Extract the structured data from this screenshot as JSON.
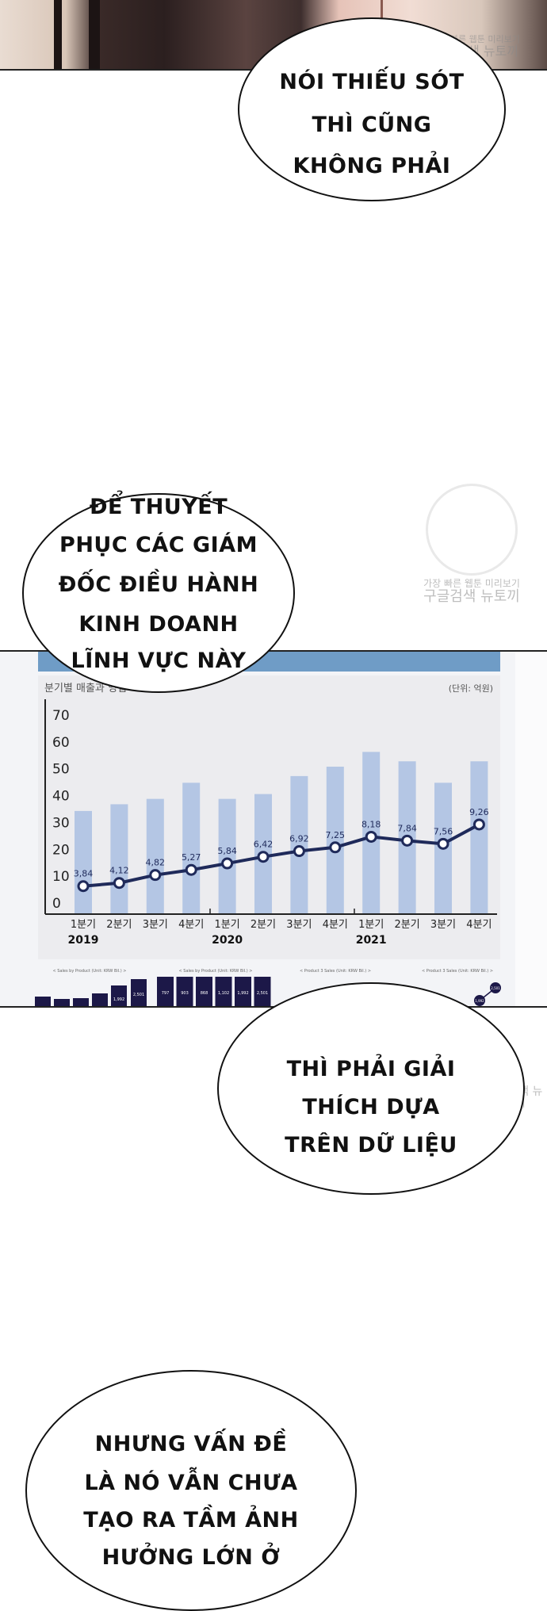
{
  "watermark": {
    "line1": "가장 빠른 웹툰 미리보기",
    "line2": "구글검색 뉴토끼"
  },
  "bubbles": [
    {
      "lines": [
        "NÓI THIẾU SÓT",
        "THÌ CŨNG",
        "KHÔNG PHẢI"
      ]
    },
    {
      "lines": [
        "ĐỂ THUYẾT",
        "PHỤC CÁC GIÁM",
        "ĐỐC ĐIỀU HÀNH",
        "KINH DOANH",
        "LĨNH VỰC NÀY"
      ]
    },
    {
      "lines": [
        "THÌ PHẢI GIẢI",
        "THÍCH DỰA",
        "TRÊN DỮ LIỆU"
      ]
    },
    {
      "lines": [
        "NHƯNG VẤN ĐỀ",
        "LÀ NÓ VẪN CHƯA",
        "TẠO RA TẦM ẢNH",
        "HƯỞNG LỚN Ở"
      ]
    }
  ],
  "colors": {
    "bar": "#b4c6e4",
    "line": "#1f2a5a",
    "header": "#6f9cc6",
    "dark_bar": "#1c1848"
  },
  "chart_data": {
    "type": "bar",
    "title": "분기별 매출과 영업",
    "unit": "(단위: 억원)",
    "categories": [
      "1분기",
      "2분기",
      "3분기",
      "4분기",
      "1분기",
      "2분기",
      "3분기",
      "4분기",
      "1분기",
      "2분기",
      "3분기",
      "4분기"
    ],
    "years": [
      "2019",
      "2020",
      "2021"
    ],
    "yticks": [
      "0",
      "10",
      "20",
      "30",
      "40",
      "50",
      "60",
      "70"
    ],
    "ylim": [
      0,
      70
    ],
    "grid": false,
    "series": [
      {
        "type": "bar",
        "values": [
          34,
          36.5,
          38.5,
          44.5,
          38.5,
          40.3,
          47,
          50.5,
          56,
          52.5,
          44.5,
          52.5
        ]
      },
      {
        "type": "line",
        "values": [
          3.84,
          4.12,
          4.82,
          5.27,
          5.84,
          6.42,
          6.92,
          7.25,
          8.18,
          7.84,
          7.56,
          9.26
        ],
        "labels": [
          "3,84",
          "4,12",
          "4,82",
          "5,27",
          "5,84",
          "6,42",
          "6,92",
          "7,25",
          "8,18",
          "7,84",
          "7,56",
          "9,26"
        ]
      }
    ]
  },
  "mini_charts": {
    "titles": [
      "< Sales by Product (Unit: KRW Bil.) >",
      "< Sales by Product (Unit: KRW Bil.) >",
      "< Product 3 Sales (Unit: KRW Bil.) >",
      "< Product 3 Sales (Unit: KRW Bil.) >"
    ],
    "labels1": [
      "1,992",
      "2,501"
    ],
    "labels2": [
      "797",
      "903",
      "868",
      "1,102",
      "1,992",
      "2,501"
    ],
    "labels4": [
      "1,992",
      "2,501"
    ]
  }
}
